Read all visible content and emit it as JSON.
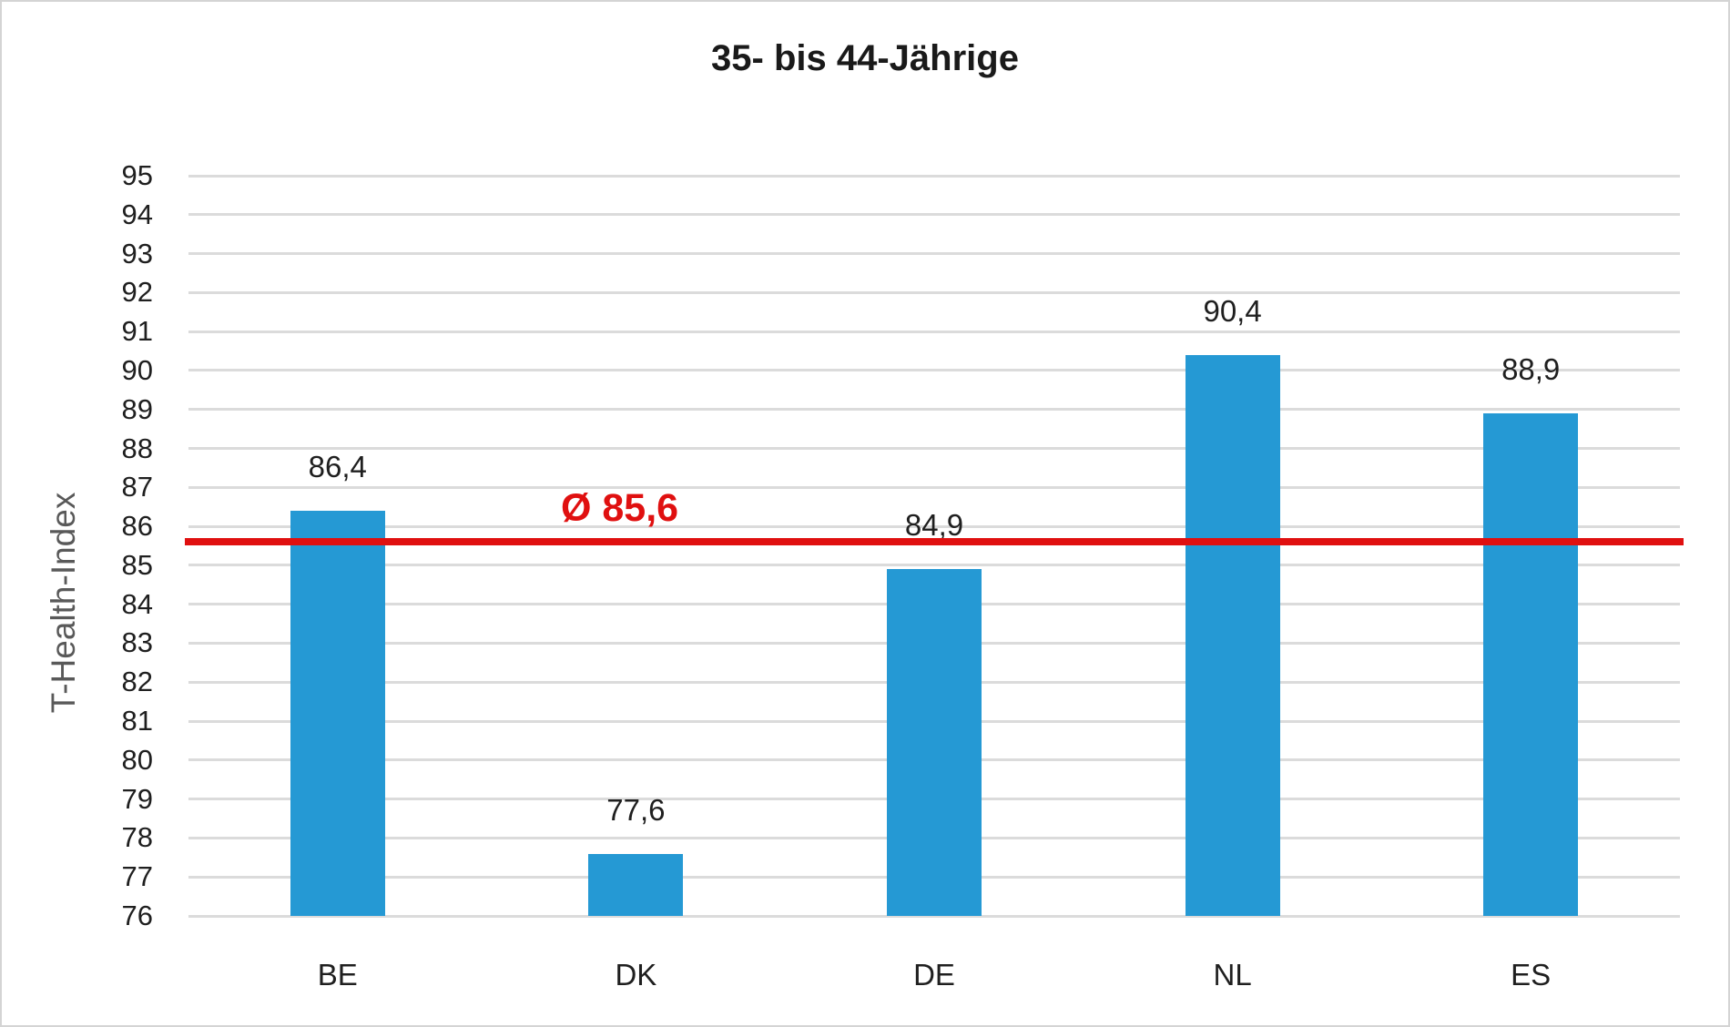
{
  "title": "35- bis 44-Jährige",
  "chart_data": {
    "type": "bar",
    "title": "35- bis 44-Jährige",
    "xlabel": "",
    "ylabel": "T-Health-Index",
    "categories": [
      "BE",
      "DK",
      "DE",
      "NL",
      "ES"
    ],
    "values": [
      86.4,
      77.6,
      84.9,
      90.4,
      88.9
    ],
    "value_labels": [
      "86,4",
      "77,6",
      "84,9",
      "90,4",
      "88,9"
    ],
    "ylim": [
      76,
      95
    ],
    "ytick_step": 1,
    "ytick_labels": [
      "76",
      "77",
      "78",
      "79",
      "80",
      "81",
      "82",
      "83",
      "84",
      "85",
      "86",
      "87",
      "88",
      "89",
      "90",
      "91",
      "92",
      "93",
      "94",
      "95"
    ],
    "grid": "horizontal",
    "legend": "none",
    "average_line": {
      "value": 85.6,
      "label": "Ø 85,6"
    },
    "colors": {
      "bar": "#2599d4",
      "average_line": "#e01010",
      "gridline": "#dbdbdb",
      "axis_title": "#595959",
      "text": "#1f1f1f"
    }
  }
}
